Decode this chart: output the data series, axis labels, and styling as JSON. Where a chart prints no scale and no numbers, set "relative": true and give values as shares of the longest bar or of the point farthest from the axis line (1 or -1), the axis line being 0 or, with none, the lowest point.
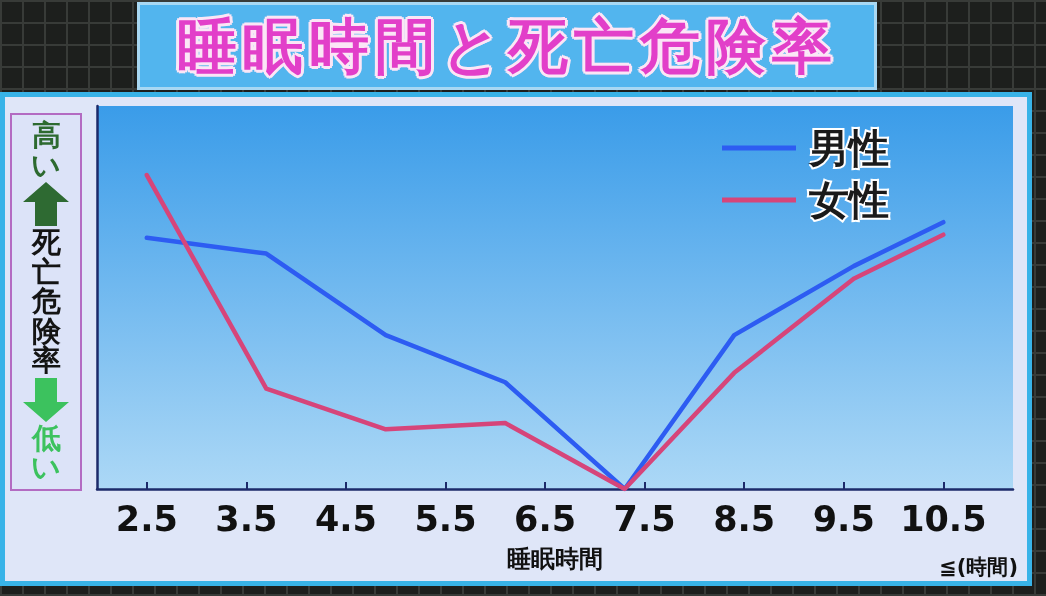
{
  "chart_data": {
    "type": "line",
    "title": "睡眠時間と死亡危険率",
    "xlabel": "睡眠時間",
    "ylabel": "死亡危険率",
    "annotations": [
      "高い",
      "低い",
      "≦(時間)"
    ],
    "relative": true,
    "legend": "top right",
    "xlim": [
      2,
      11.2
    ],
    "xticks": [
      2.5,
      3.5,
      4.5,
      5.5,
      6.5,
      7.5,
      8.5,
      9.5,
      10.5
    ],
    "x": [
      2.5,
      3.7,
      4.9,
      6.1,
      7.3,
      8.4,
      9.6,
      10.5
    ],
    "series": [
      {
        "name": "男性",
        "color": "#2d5cf2",
        "values": [
          0.8,
          0.75,
          0.49,
          0.34,
          0,
          0.49,
          0.71,
          0.85
        ]
      },
      {
        "name": "女性",
        "color": "#d6457a",
        "values": [
          1,
          0.32,
          0.19,
          0.21,
          0,
          0.37,
          0.67,
          0.81
        ]
      }
    ]
  }
}
